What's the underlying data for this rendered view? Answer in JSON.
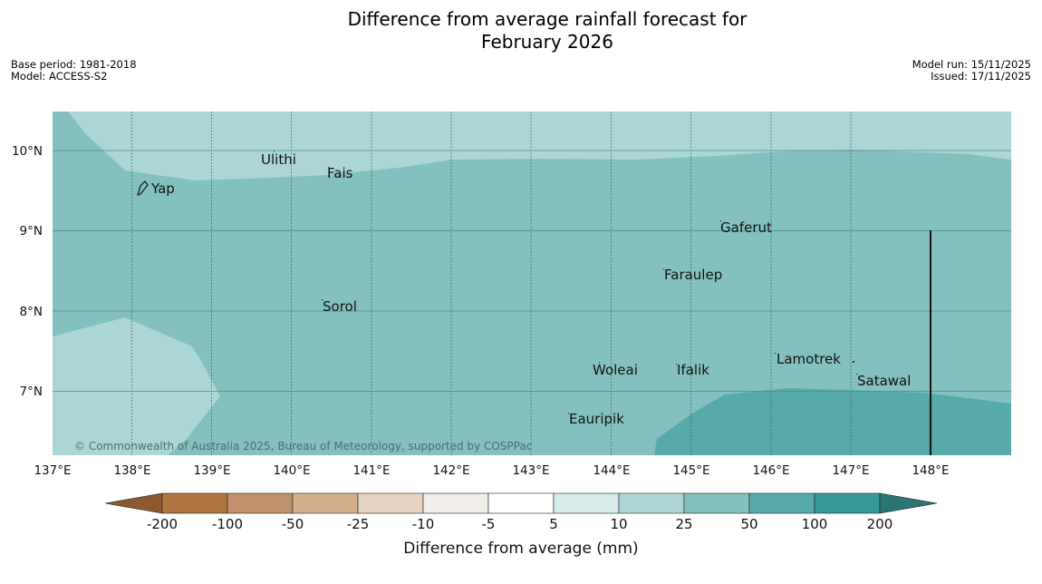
{
  "title_line1": "Difference from average rainfall forecast for",
  "title_line2": "February 2026",
  "base_period": "Base period: 1981-2018",
  "model": "Model: ACCESS-S2",
  "model_run": "Model run: 15/11/2025",
  "issued": "Issued: 17/11/2025",
  "copyright": "© Commonwealth of Australia 2025, Bureau of Meteorology, supported by COSPPac",
  "lon_labels": [
    "137°E",
    "138°E",
    "139°E",
    "140°E",
    "141°E",
    "142°E",
    "143°E",
    "144°E",
    "145°E",
    "146°E",
    "147°E",
    "148°E"
  ],
  "lat_labels": [
    "10°N",
    "9°N",
    "8°N",
    "7°N"
  ],
  "places": {
    "ulithi": "Ulithi",
    "fais": "Fais",
    "yap": "Yap",
    "gaferut": "Gaferut",
    "faraulep": "Faraulep",
    "sorol": "Sorol",
    "lamotrek": "Lamotrek",
    "woleai": "Woleai",
    "ifalik": "Ifalik",
    "satawal": "Satawal",
    "eauripik": "Eauripik"
  },
  "colorbar": {
    "ticks": [
      "-200",
      "-100",
      "-50",
      "-25",
      "-10",
      "-5",
      "5",
      "10",
      "25",
      "50",
      "100",
      "200"
    ],
    "title": "Difference from average (mm)",
    "colors": [
      "#8c5a2e",
      "#b07440",
      "#c0916a",
      "#d6b08e",
      "#e6d3c2",
      "#f1eeea",
      "#ffffff",
      "#d7ebeb",
      "#acd6d6",
      "#84c0bf",
      "#58aaaa",
      "#35999a",
      "#2b7575"
    ]
  }
}
